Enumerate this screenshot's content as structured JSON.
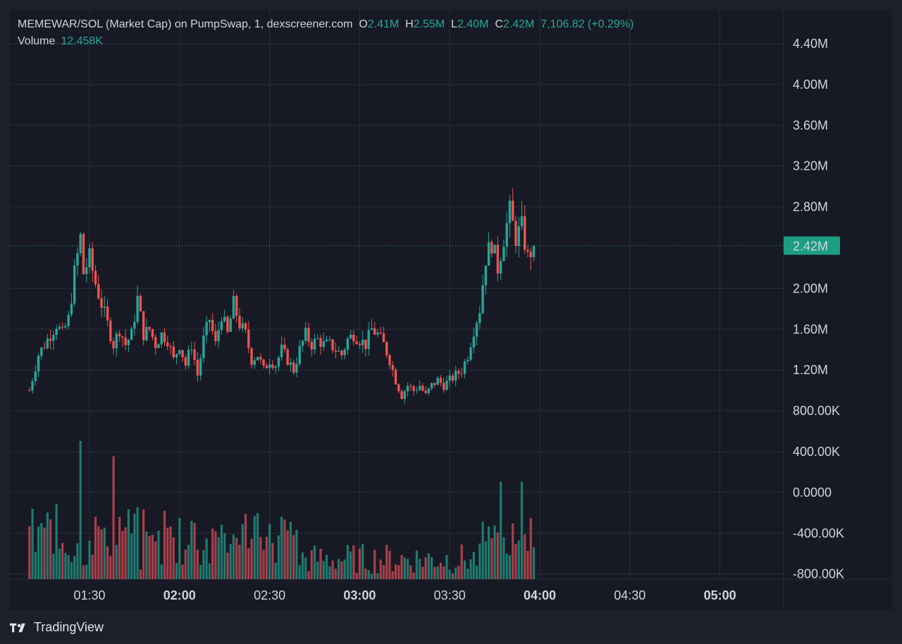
{
  "legend": {
    "symbol": "MEMEWAR/SOL (Market Cap) on PumpSwap, 1, dexscreener.com",
    "o_label": "O",
    "o_value": "2.41M",
    "h_label": "H",
    "h_value": "2.55M",
    "l_label": "L",
    "l_value": "2.40M",
    "c_label": "C",
    "c_value": "2.42M",
    "change": "7,106.82 (+0.29%)",
    "volume_label": "Volume",
    "volume_value": "12.458K"
  },
  "last_price_label": "2.42M",
  "brand": "TradingView",
  "colors": {
    "up": "#26a69a",
    "down": "#ef5350",
    "up_volume": "#1f7a70",
    "down_volume": "#a8404a",
    "price_tag": "#1c9e82",
    "grid": "#2a2e39",
    "background": "#171a24"
  },
  "chart_data": {
    "type": "candlestick",
    "y_axis_ticks": [
      "4.40M",
      "4.00M",
      "3.60M",
      "3.20M",
      "2.80M",
      "2.42M",
      "2.00M",
      "1.60M",
      "1.20M",
      "800.00K",
      "400.00K",
      "0.0000",
      "-400.00K",
      "-800.00K"
    ],
    "y_axis_values": [
      4400000,
      4000000,
      3600000,
      3200000,
      2800000,
      2420000,
      2000000,
      1600000,
      1200000,
      800000,
      400000,
      0,
      -400000,
      -800000
    ],
    "x_axis_ticks": [
      {
        "label": "01:30",
        "bold": false
      },
      {
        "label": "02:00",
        "bold": true
      },
      {
        "label": "02:30",
        "bold": false
      },
      {
        "label": "03:00",
        "bold": true
      },
      {
        "label": "03:30",
        "bold": false
      },
      {
        "label": "04:00",
        "bold": true
      },
      {
        "label": "04:30",
        "bold": false
      },
      {
        "label": "05:00",
        "bold": true
      }
    ],
    "x_axis_start": "01:10",
    "x_axis_end": "05:22",
    "ylim": [
      -860000,
      4600000
    ],
    "last_price": 2420000,
    "price_path": [
      [
        "01:10",
        1000000
      ],
      [
        "01:13",
        1350000
      ],
      [
        "01:16",
        1500000
      ],
      [
        "01:19",
        1650000
      ],
      [
        "01:21",
        1550000
      ],
      [
        "01:23",
        1700000
      ],
      [
        "01:25",
        2150000
      ],
      [
        "01:27",
        2500000
      ],
      [
        "01:28",
        2150000
      ],
      [
        "01:30",
        2300000
      ],
      [
        "01:32",
        2050000
      ],
      [
        "01:34",
        1850000
      ],
      [
        "01:36",
        1650000
      ],
      [
        "01:38",
        1450000
      ],
      [
        "01:40",
        1600000
      ],
      [
        "01:42",
        1450000
      ],
      [
        "01:44",
        1550000
      ],
      [
        "01:46",
        1900000
      ],
      [
        "01:48",
        1550000
      ],
      [
        "01:50",
        1600000
      ],
      [
        "01:52",
        1450000
      ],
      [
        "01:54",
        1550000
      ],
      [
        "01:56",
        1500000
      ],
      [
        "01:58",
        1300000
      ],
      [
        "02:00",
        1450000
      ],
      [
        "02:02",
        1250000
      ],
      [
        "02:04",
        1450000
      ],
      [
        "02:06",
        1150000
      ],
      [
        "02:08",
        1500000
      ],
      [
        "02:10",
        1700000
      ],
      [
        "02:12",
        1450000
      ],
      [
        "02:14",
        1750000
      ],
      [
        "02:16",
        1550000
      ],
      [
        "02:18",
        1850000
      ],
      [
        "02:20",
        1650000
      ],
      [
        "02:22",
        1550000
      ],
      [
        "02:24",
        1300000
      ],
      [
        "02:26",
        1350000
      ],
      [
        "02:28",
        1200000
      ],
      [
        "02:30",
        1300000
      ],
      [
        "02:32",
        1250000
      ],
      [
        "02:34",
        1400000
      ],
      [
        "02:36",
        1300000
      ],
      [
        "02:38",
        1200000
      ],
      [
        "02:40",
        1400000
      ],
      [
        "02:42",
        1550000
      ],
      [
        "02:44",
        1450000
      ],
      [
        "02:46",
        1500000
      ],
      [
        "02:48",
        1450000
      ],
      [
        "02:50",
        1450000
      ],
      [
        "02:52",
        1400000
      ],
      [
        "02:54",
        1350000
      ],
      [
        "02:56",
        1500000
      ],
      [
        "02:58",
        1550000
      ],
      [
        "03:00",
        1500000
      ],
      [
        "03:02",
        1450000
      ],
      [
        "03:04",
        1600000
      ],
      [
        "03:06",
        1550000
      ],
      [
        "03:08",
        1450000
      ],
      [
        "03:10",
        1300000
      ],
      [
        "03:12",
        1100000
      ],
      [
        "03:14",
        950000
      ],
      [
        "03:16",
        1050000
      ],
      [
        "03:18",
        1000000
      ],
      [
        "03:20",
        1050000
      ],
      [
        "03:22",
        950000
      ],
      [
        "03:24",
        1050000
      ],
      [
        "03:26",
        1100000
      ],
      [
        "03:28",
        1050000
      ],
      [
        "03:30",
        1100000
      ],
      [
        "03:32",
        1150000
      ],
      [
        "03:34",
        1200000
      ],
      [
        "03:36",
        1350000
      ],
      [
        "03:38",
        1600000
      ],
      [
        "03:40",
        1800000
      ],
      [
        "03:42",
        2300000
      ],
      [
        "03:44",
        2450000
      ],
      [
        "03:46",
        2200000
      ],
      [
        "03:48",
        2500000
      ],
      [
        "03:50",
        2750000
      ],
      [
        "03:52",
        2500000
      ],
      [
        "03:54",
        2600000
      ],
      [
        "03:56",
        2300000
      ],
      [
        "03:58",
        2420000
      ]
    ],
    "volume_ylim": [
      0,
      550000
    ],
    "volume_peaks": [
      {
        "time": "01:27",
        "value": 540000
      },
      {
        "time": "01:38",
        "value": 480000
      },
      {
        "time": "03:47",
        "value": 380000
      },
      {
        "time": "03:54",
        "value": 380000
      }
    ]
  }
}
